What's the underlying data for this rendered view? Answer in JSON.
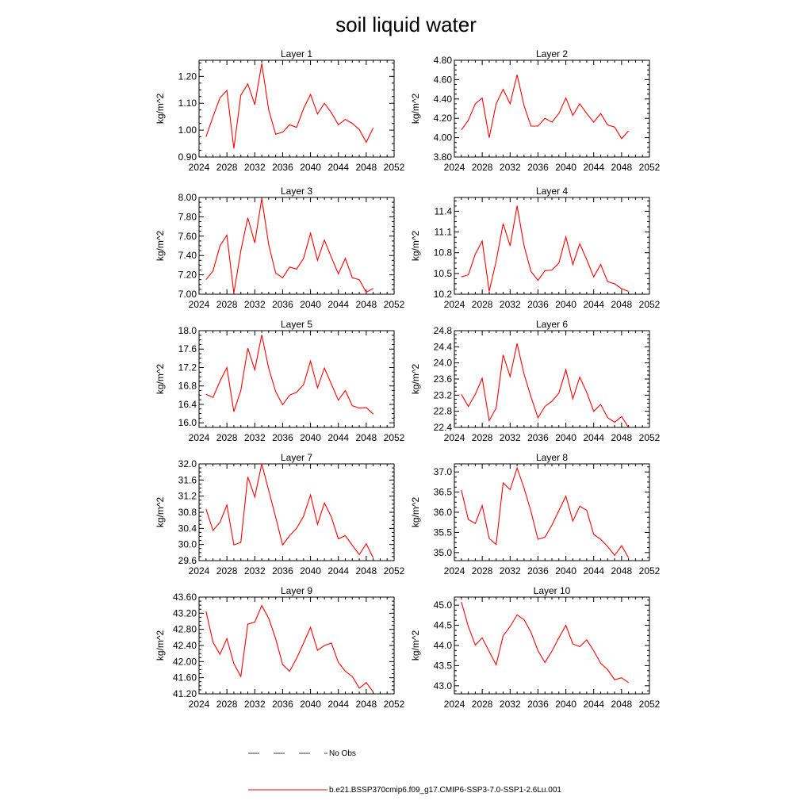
{
  "title": "soil liquid water",
  "legend": {
    "obs_label": "No Obs",
    "obs_color": "#2e2e8f",
    "model_label": "b.e21.BSSP370cmip6.f09_g17.CMIP6-SSP3-7.0-SSP1-2.6Lu.001",
    "model_color": "#ff0000"
  },
  "chart_data": [
    {
      "type": "line",
      "title": "Layer 1",
      "ylabel": "kg/m^2",
      "xlim": [
        2024,
        2052
      ],
      "ylim": [
        0.9,
        1.26
      ],
      "xticks": [
        "2024",
        "2028",
        "2032",
        "2036",
        "2040",
        "2044",
        "2048",
        "2052"
      ],
      "yticks": [
        "0.90",
        "1.00",
        "1.10",
        "1.20"
      ],
      "x": [
        2025,
        2026,
        2027,
        2028,
        2029,
        2030,
        2031,
        2032,
        2033,
        2034,
        2035,
        2036,
        2037,
        2038,
        2039,
        2040,
        2041,
        2042,
        2043,
        2044,
        2045,
        2046,
        2047,
        2048,
        2049
      ],
      "y": [
        0.975,
        1.05,
        1.12,
        1.148,
        0.932,
        1.13,
        1.172,
        1.095,
        1.248,
        1.075,
        0.985,
        0.992,
        1.02,
        1.01,
        1.08,
        1.133,
        1.06,
        1.1,
        1.065,
        1.02,
        1.04,
        1.025,
        1.002,
        0.955,
        1.008
      ]
    },
    {
      "type": "line",
      "title": "Layer 2",
      "ylabel": "kg/m^2",
      "xlim": [
        2024,
        2052
      ],
      "ylim": [
        3.8,
        4.8
      ],
      "xticks": [
        "2024",
        "2028",
        "2032",
        "2036",
        "2040",
        "2044",
        "2048",
        "2052"
      ],
      "yticks": [
        "3.80",
        "4.00",
        "4.20",
        "4.40",
        "4.60",
        "4.80"
      ],
      "x": [
        2025,
        2026,
        2027,
        2028,
        2029,
        2030,
        2031,
        2032,
        2033,
        2034,
        2035,
        2036,
        2037,
        2038,
        2039,
        2040,
        2041,
        2042,
        2043,
        2044,
        2045,
        2046,
        2047,
        2048,
        2049
      ],
      "y": [
        4.08,
        4.18,
        4.35,
        4.41,
        4.0,
        4.35,
        4.5,
        4.35,
        4.65,
        4.33,
        4.12,
        4.12,
        4.2,
        4.16,
        4.25,
        4.41,
        4.23,
        4.35,
        4.25,
        4.16,
        4.25,
        4.13,
        4.11,
        3.99,
        4.07
      ]
    },
    {
      "type": "line",
      "title": "Layer 3",
      "ylabel": "kg/m^2",
      "xlim": [
        2024,
        2052
      ],
      "ylim": [
        7.0,
        8.0
      ],
      "xticks": [
        "2024",
        "2028",
        "2032",
        "2036",
        "2040",
        "2044",
        "2048",
        "2052"
      ],
      "yticks": [
        "7.00",
        "7.20",
        "7.40",
        "7.60",
        "7.80",
        "8.00"
      ],
      "x": [
        2025,
        2026,
        2027,
        2028,
        2029,
        2030,
        2031,
        2032,
        2033,
        2034,
        2035,
        2036,
        2037,
        2038,
        2039,
        2040,
        2041,
        2042,
        2043,
        2044,
        2045,
        2046,
        2047,
        2048,
        2049
      ],
      "y": [
        7.15,
        7.24,
        7.5,
        7.61,
        7.01,
        7.45,
        7.79,
        7.53,
        7.99,
        7.51,
        7.22,
        7.17,
        7.28,
        7.26,
        7.37,
        7.63,
        7.35,
        7.56,
        7.38,
        7.21,
        7.37,
        7.17,
        7.15,
        7.02,
        7.06
      ]
    },
    {
      "type": "line",
      "title": "Layer 4",
      "ylabel": "kg/m^2",
      "xlim": [
        2024,
        2052
      ],
      "ylim": [
        10.2,
        11.6
      ],
      "xticks": [
        "2024",
        "2028",
        "2032",
        "2036",
        "2040",
        "2044",
        "2048",
        "2052"
      ],
      "yticks": [
        "10.2",
        "10.5",
        "10.8",
        "11.1",
        "11.4"
      ],
      "x": [
        2025,
        2026,
        2027,
        2028,
        2029,
        2030,
        2031,
        2032,
        2033,
        2034,
        2035,
        2036,
        2037,
        2038,
        2039,
        2040,
        2041,
        2042,
        2043,
        2044,
        2045,
        2046,
        2047,
        2048,
        2049
      ],
      "y": [
        10.45,
        10.48,
        10.78,
        10.97,
        10.24,
        10.68,
        11.22,
        10.9,
        11.48,
        10.9,
        10.53,
        10.4,
        10.54,
        10.55,
        10.65,
        11.03,
        10.63,
        10.93,
        10.7,
        10.45,
        10.63,
        10.38,
        10.35,
        10.28,
        10.24
      ]
    },
    {
      "type": "line",
      "title": "Layer 5",
      "ylabel": "kg/m^2",
      "xlim": [
        2024,
        2052
      ],
      "ylim": [
        15.9,
        18.0
      ],
      "xticks": [
        "2024",
        "2028",
        "2032",
        "2036",
        "2040",
        "2044",
        "2048",
        "2052"
      ],
      "yticks": [
        "16.0",
        "16.4",
        "16.8",
        "17.2",
        "17.6",
        "18.0"
      ],
      "x": [
        2025,
        2026,
        2027,
        2028,
        2029,
        2030,
        2031,
        2032,
        2033,
        2034,
        2035,
        2036,
        2037,
        2038,
        2039,
        2040,
        2041,
        2042,
        2043,
        2044,
        2045,
        2046,
        2047,
        2048,
        2049
      ],
      "y": [
        16.62,
        16.55,
        16.9,
        17.2,
        16.24,
        16.7,
        17.62,
        17.15,
        17.91,
        17.18,
        16.68,
        16.39,
        16.6,
        16.66,
        16.83,
        17.34,
        16.76,
        17.19,
        16.84,
        16.49,
        16.7,
        16.37,
        16.32,
        16.33,
        16.19
      ]
    },
    {
      "type": "line",
      "title": "Layer 6",
      "ylabel": "kg/m^2",
      "xlim": [
        2024,
        2052
      ],
      "ylim": [
        22.4,
        24.8
      ],
      "xticks": [
        "2024",
        "2028",
        "2032",
        "2036",
        "2040",
        "2044",
        "2048",
        "2052"
      ],
      "yticks": [
        "22.4",
        "22.8",
        "23.2",
        "23.6",
        "24.0",
        "24.4",
        "24.8"
      ],
      "x": [
        2025,
        2026,
        2027,
        2028,
        2029,
        2030,
        2031,
        2032,
        2033,
        2034,
        2035,
        2036,
        2037,
        2038,
        2039,
        2040,
        2041,
        2042,
        2043,
        2044,
        2045,
        2046,
        2047,
        2048,
        2049
      ],
      "y": [
        23.22,
        22.92,
        23.22,
        23.62,
        22.57,
        22.88,
        24.2,
        23.66,
        24.48,
        23.72,
        23.16,
        22.64,
        22.92,
        23.05,
        23.25,
        23.83,
        23.11,
        23.65,
        23.27,
        22.8,
        22.97,
        22.64,
        22.53,
        22.67,
        22.4
      ]
    },
    {
      "type": "line",
      "title": "Layer 7",
      "ylabel": "kg/m^2",
      "xlim": [
        2024,
        2052
      ],
      "ylim": [
        29.6,
        32.0
      ],
      "xticks": [
        "2024",
        "2028",
        "2032",
        "2036",
        "2040",
        "2044",
        "2048",
        "2052"
      ],
      "yticks": [
        "29.6",
        "30.0",
        "30.4",
        "30.8",
        "31.2",
        "31.6",
        "32.0"
      ],
      "x": [
        2025,
        2026,
        2027,
        2028,
        2029,
        2030,
        2031,
        2032,
        2033,
        2034,
        2035,
        2036,
        2037,
        2038,
        2039,
        2040,
        2041,
        2042,
        2043,
        2044,
        2045,
        2046,
        2047,
        2048,
        2049
      ],
      "y": [
        30.88,
        30.35,
        30.55,
        30.98,
        29.99,
        30.05,
        31.68,
        31.18,
        32.0,
        31.34,
        30.68,
        29.99,
        30.22,
        30.4,
        30.7,
        31.23,
        30.5,
        31.03,
        30.68,
        30.14,
        30.22,
        29.98,
        29.75,
        30.02,
        29.67
      ]
    },
    {
      "type": "line",
      "title": "Layer 8",
      "ylabel": "kg/m^2",
      "xlim": [
        2024,
        2052
      ],
      "ylim": [
        34.8,
        37.2
      ],
      "xticks": [
        "2024",
        "2028",
        "2032",
        "2036",
        "2040",
        "2044",
        "2048",
        "2052"
      ],
      "yticks": [
        "35.0",
        "35.5",
        "36.0",
        "36.5",
        "37.0"
      ],
      "x": [
        2025,
        2026,
        2027,
        2028,
        2029,
        2030,
        2031,
        2032,
        2033,
        2034,
        2035,
        2036,
        2037,
        2038,
        2039,
        2040,
        2041,
        2042,
        2043,
        2044,
        2045,
        2046,
        2047,
        2048,
        2049
      ],
      "y": [
        36.55,
        35.82,
        35.72,
        36.17,
        35.35,
        35.2,
        36.73,
        36.56,
        37.1,
        36.6,
        36.02,
        35.33,
        35.38,
        35.68,
        36.04,
        36.4,
        35.78,
        36.15,
        36.05,
        35.45,
        35.33,
        35.15,
        34.93,
        35.17,
        34.87
      ]
    },
    {
      "type": "line",
      "title": "Layer 9",
      "ylabel": "kg/m^2",
      "xlim": [
        2024,
        2052
      ],
      "ylim": [
        41.2,
        43.6
      ],
      "xticks": [
        "2024",
        "2028",
        "2032",
        "2036",
        "2040",
        "2044",
        "2048",
        "2052"
      ],
      "yticks": [
        "41.20",
        "41.60",
        "42.00",
        "42.40",
        "42.80",
        "43.20",
        "43.60"
      ],
      "x": [
        2025,
        2026,
        2027,
        2028,
        2029,
        2030,
        2031,
        2032,
        2033,
        2034,
        2035,
        2036,
        2037,
        2038,
        2039,
        2040,
        2041,
        2042,
        2043,
        2044,
        2045,
        2046,
        2047,
        2048,
        2049
      ],
      "y": [
        43.25,
        42.48,
        42.18,
        42.57,
        41.95,
        41.63,
        42.93,
        42.98,
        43.39,
        43.07,
        42.57,
        41.93,
        41.76,
        42.08,
        42.46,
        42.85,
        42.28,
        42.4,
        42.46,
        41.98,
        41.76,
        41.63,
        41.34,
        41.48,
        41.25
      ]
    },
    {
      "type": "line",
      "title": "Layer 10",
      "ylabel": "kg/m^2",
      "xlim": [
        2024,
        2052
      ],
      "ylim": [
        42.8,
        45.2
      ],
      "xticks": [
        "2024",
        "2028",
        "2032",
        "2036",
        "2040",
        "2044",
        "2048",
        "2052"
      ],
      "yticks": [
        "43.0",
        "43.5",
        "44.0",
        "44.5",
        "45.0"
      ],
      "x": [
        2025,
        2026,
        2027,
        2028,
        2029,
        2030,
        2031,
        2032,
        2033,
        2034,
        2035,
        2036,
        2037,
        2038,
        2039,
        2040,
        2041,
        2042,
        2043,
        2044,
        2045,
        2046,
        2047,
        2048,
        2049
      ],
      "y": [
        45.08,
        44.47,
        44.01,
        44.19,
        43.85,
        43.52,
        44.24,
        44.47,
        44.76,
        44.64,
        44.33,
        43.87,
        43.58,
        43.86,
        44.19,
        44.5,
        44.04,
        43.97,
        44.14,
        43.87,
        43.56,
        43.4,
        43.15,
        43.2,
        43.08
      ]
    }
  ]
}
